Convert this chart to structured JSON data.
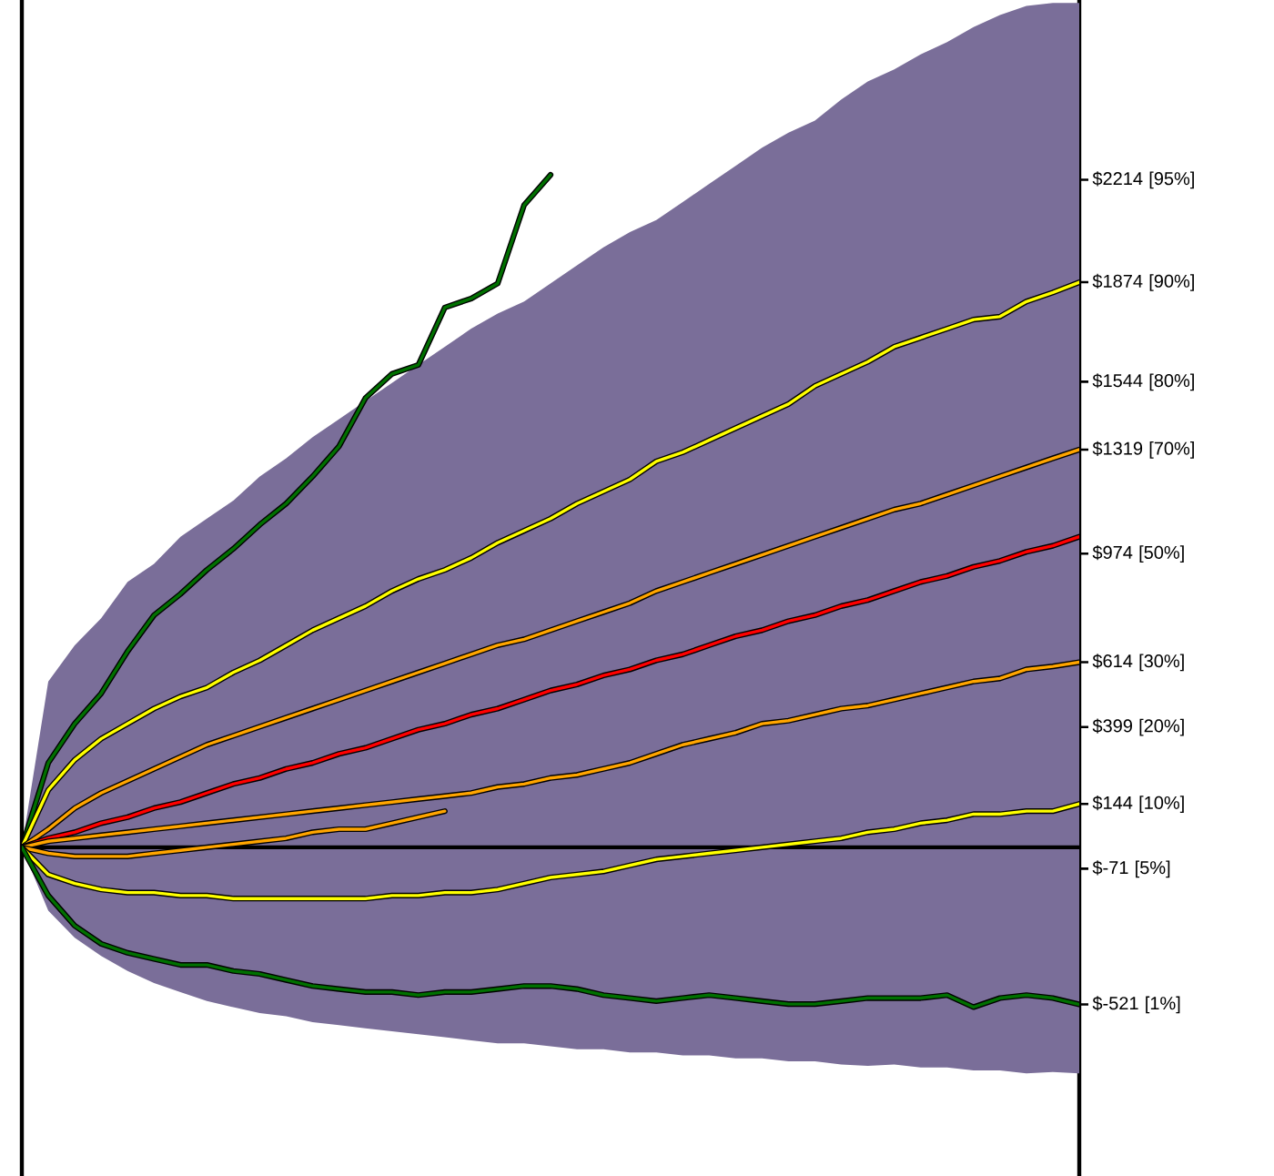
{
  "chart_data": {
    "type": "line",
    "categories": [
      null,
      null,
      null,
      null,
      null,
      null,
      null,
      null,
      null,
      null,
      null,
      null,
      null,
      null,
      null,
      null,
      null,
      null,
      null,
      null,
      null,
      null,
      null,
      null,
      null,
      null,
      null,
      null,
      null,
      null,
      null,
      null,
      null,
      null,
      null,
      null,
      null,
      null,
      null,
      null,
      null
    ],
    "ylim": [
      -1090,
      2810
    ],
    "yticks": [
      {
        "value": 2214,
        "label": "$2214"
      },
      {
        "value": 1874,
        "label": "$1874"
      },
      {
        "value": 1544,
        "label": "$1544"
      },
      {
        "value": 1319,
        "label": "$1319"
      },
      {
        "value": 974,
        "label": "$974"
      },
      {
        "value": 614,
        "label": "$614"
      },
      {
        "value": 399,
        "label": "$399"
      },
      {
        "value": 144,
        "label": "$144"
      },
      {
        "value": -71,
        "label": "$-71"
      },
      {
        "value": -521,
        "label": "$-521"
      }
    ],
    "annotations": [
      "[95%]",
      "[90%]",
      "[80%]",
      "[70%]",
      "[50%]",
      "[30%]",
      "[20%]",
      "[10%]",
      "[5%]",
      "[1%]"
    ],
    "tick_labels": "y",
    "ref_lines": [
      {
        "axis": "y",
        "value": 0,
        "color": "#000000"
      }
    ],
    "series": [
      {
        "color": "#007000",
        "values": [
          0,
          280,
          410,
          510,
          650,
          770,
          840,
          920,
          990,
          1070,
          1140,
          1230,
          1330,
          1490,
          1570,
          1600,
          1790,
          1820,
          1870,
          2130,
          2230,
          null,
          null,
          null,
          null,
          null,
          null,
          null,
          null,
          null,
          null,
          null,
          null,
          null,
          null,
          null,
          null,
          null,
          null,
          null,
          null
        ]
      },
      {
        "color": "#ffff00",
        "values": [
          0,
          190,
          290,
          360,
          410,
          460,
          500,
          530,
          580,
          620,
          670,
          720,
          760,
          800,
          850,
          890,
          920,
          960,
          1010,
          1050,
          1090,
          1140,
          1180,
          1220,
          1280,
          1310,
          1350,
          1390,
          1430,
          1470,
          1530,
          1570,
          1610,
          1660,
          1690,
          1720,
          1750,
          1760,
          1810,
          1840,
          1874
        ]
      },
      {
        "color": "#ffa500",
        "values": [
          0,
          60,
          130,
          180,
          220,
          260,
          300,
          340,
          370,
          400,
          430,
          460,
          490,
          520,
          550,
          580,
          610,
          640,
          670,
          690,
          720,
          750,
          780,
          810,
          850,
          880,
          910,
          940,
          970,
          1000,
          1030,
          1060,
          1090,
          1120,
          1140,
          1170,
          1200,
          1230,
          1260,
          1290,
          1319
        ]
      },
      {
        "color": "#ff0000",
        "values": [
          0,
          30,
          50,
          80,
          100,
          130,
          150,
          180,
          210,
          230,
          260,
          280,
          310,
          330,
          360,
          390,
          410,
          440,
          460,
          490,
          520,
          540,
          570,
          590,
          620,
          640,
          670,
          700,
          720,
          750,
          770,
          800,
          820,
          850,
          880,
          900,
          930,
          950,
          980,
          1000,
          1030
        ],
        "lower": [
          0,
          -210,
          -300,
          -360,
          -410,
          -450,
          -480,
          -510,
          -530,
          -550,
          -560,
          -580,
          -590,
          -600,
          -610,
          -620,
          -630,
          -640,
          -650,
          -650,
          -660,
          -670,
          -670,
          -680,
          -680,
          -690,
          -690,
          -700,
          -700,
          -710,
          -710,
          -720,
          -725,
          -720,
          -730,
          -730,
          -740,
          -740,
          -750,
          -745,
          -750
        ],
        "upper": [
          0,
          550,
          670,
          760,
          880,
          940,
          1030,
          1090,
          1150,
          1230,
          1290,
          1360,
          1420,
          1480,
          1540,
          1600,
          1660,
          1720,
          1770,
          1810,
          1870,
          1930,
          1990,
          2040,
          2080,
          2140,
          2200,
          2260,
          2320,
          2370,
          2410,
          2480,
          2540,
          2580,
          2630,
          2670,
          2720,
          2760,
          2790,
          2800,
          2800
        ]
      },
      {
        "color": "#ffa500",
        "values": [
          0,
          20,
          30,
          40,
          50,
          60,
          70,
          80,
          90,
          100,
          110,
          120,
          130,
          140,
          150,
          160,
          170,
          180,
          200,
          210,
          230,
          240,
          260,
          280,
          310,
          340,
          360,
          380,
          410,
          420,
          440,
          460,
          470,
          490,
          510,
          530,
          550,
          560,
          590,
          600,
          614
        ]
      },
      {
        "color": "#ffa500",
        "values": [
          0,
          -20,
          -30,
          -30,
          -30,
          -20,
          -10,
          0,
          10,
          20,
          30,
          50,
          60,
          60,
          80,
          100,
          120,
          null,
          null,
          null,
          null,
          null,
          null,
          null,
          null,
          null,
          null,
          null,
          null,
          null,
          null,
          null,
          null,
          null,
          null,
          null,
          null,
          null,
          null,
          null,
          null
        ]
      },
      {
        "color": "#ffff00",
        "values": [
          0,
          -90,
          -120,
          -140,
          -150,
          -150,
          -160,
          -160,
          -170,
          -170,
          -170,
          -170,
          -170,
          -170,
          -160,
          -160,
          -150,
          -150,
          -140,
          -120,
          -100,
          -90,
          -80,
          -60,
          -40,
          -30,
          -20,
          -10,
          0,
          10,
          20,
          30,
          50,
          60,
          80,
          90,
          110,
          110,
          120,
          120,
          144
        ]
      },
      {
        "color": "#007000",
        "values": [
          0,
          -160,
          -260,
          -320,
          -350,
          -370,
          -390,
          -390,
          -410,
          -420,
          -440,
          -460,
          -470,
          -480,
          -480,
          -490,
          -480,
          -480,
          -470,
          -460,
          -460,
          -470,
          -490,
          -500,
          -510,
          -500,
          -490,
          -500,
          -510,
          -520,
          -520,
          -510,
          -500,
          -500,
          -500,
          -490,
          -530,
          -500,
          -490,
          -500,
          -521
        ]
      }
    ]
  }
}
